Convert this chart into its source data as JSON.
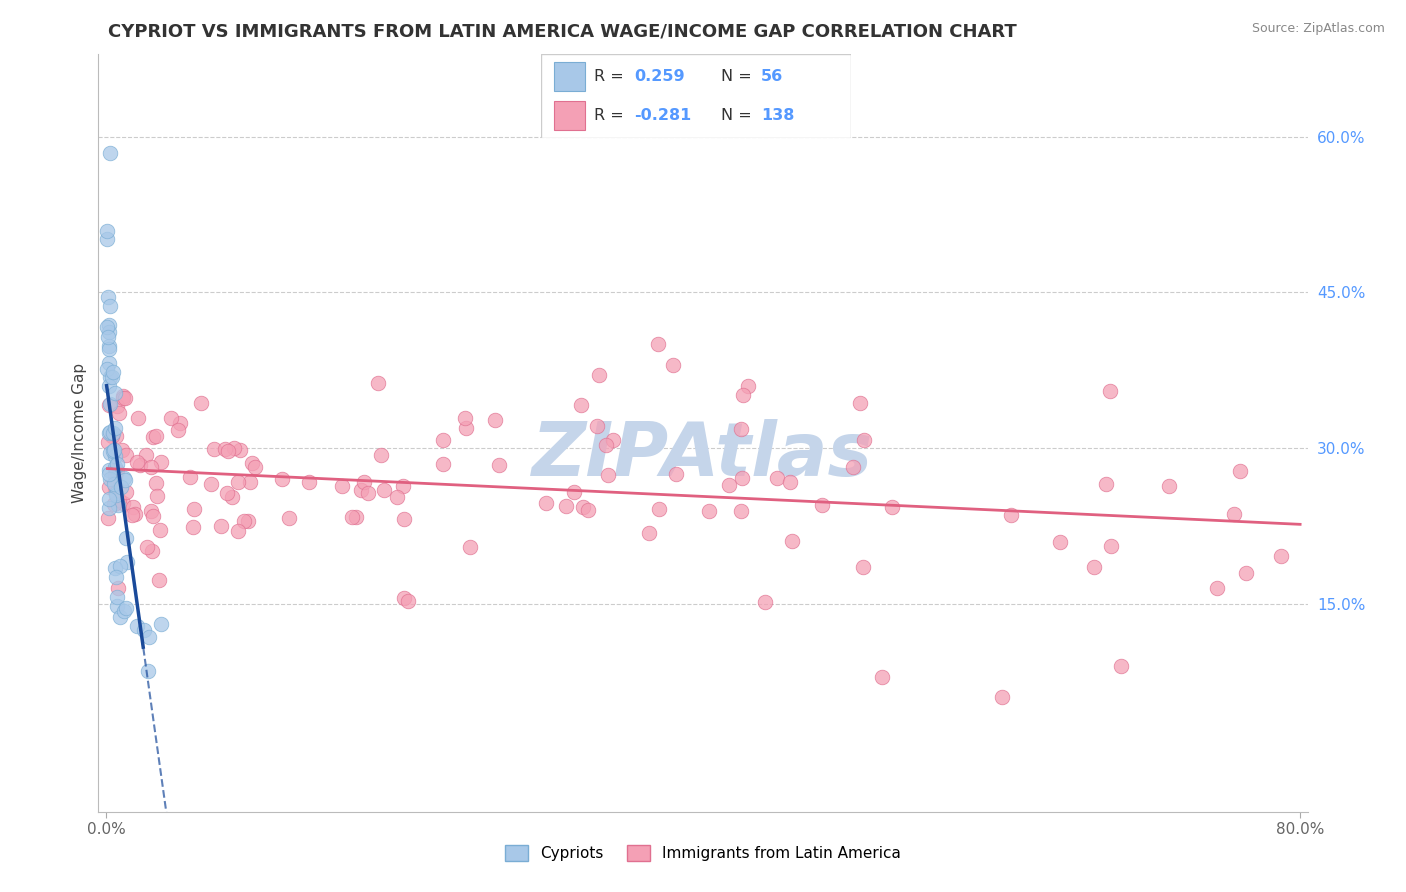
{
  "title": "CYPRIOT VS IMMIGRANTS FROM LATIN AMERICA WAGE/INCOME GAP CORRELATION CHART",
  "source": "Source: ZipAtlas.com",
  "ylabel": "Wage/Income Gap",
  "right_yticks": [
    "60.0%",
    "45.0%",
    "30.0%",
    "15.0%"
  ],
  "right_ytick_vals": [
    0.6,
    0.45,
    0.3,
    0.15
  ],
  "xlim": [
    -0.005,
    0.805
  ],
  "ylim": [
    -0.05,
    0.68
  ],
  "cypriot_color": "#A8C8E8",
  "cypriot_edge": "#7AADD4",
  "latin_color": "#F4A0B5",
  "latin_edge": "#E07090",
  "trend_blue": "#1A4A9A",
  "trend_pink": "#E06080",
  "watermark": "ZIPAtlas",
  "watermark_color": "#C5D5EA",
  "bottom_legend_cypriot": "Cypriots",
  "bottom_legend_latin": "Immigrants from Latin America"
}
